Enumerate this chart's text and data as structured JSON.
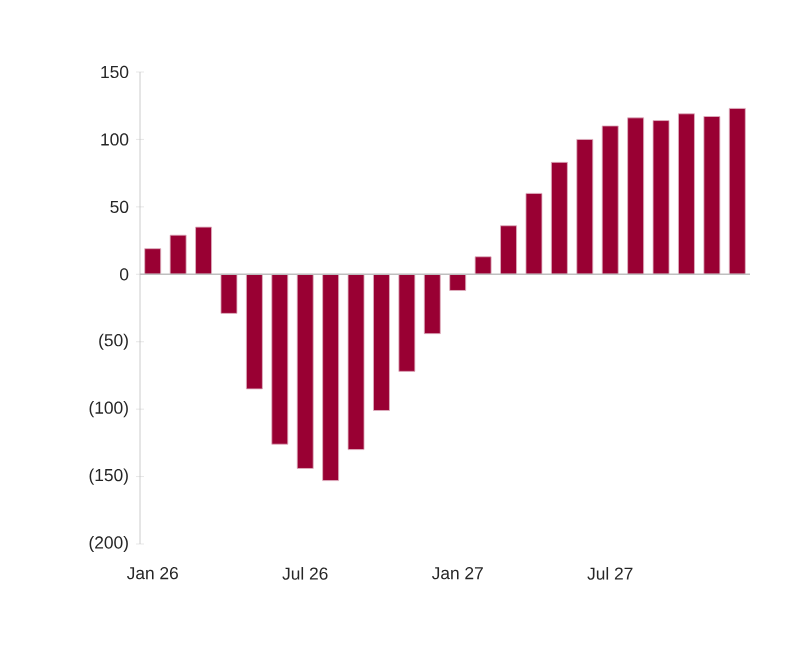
{
  "chart_data": {
    "type": "bar",
    "categories": [
      "Jan 26",
      null,
      null,
      null,
      null,
      null,
      "Jul 26",
      null,
      null,
      null,
      null,
      null,
      "Jan 27",
      null,
      null,
      null,
      null,
      null,
      "Jul 27",
      null,
      null,
      null,
      null,
      null
    ],
    "values": [
      19,
      29,
      35,
      -29,
      -85,
      -126,
      -144,
      -153,
      -130,
      -101,
      -72,
      -44,
      -12,
      13,
      36,
      60,
      83,
      100,
      110,
      116,
      114,
      119,
      117,
      123
    ],
    "color": "#990033",
    "ylim": [
      -200,
      150
    ],
    "yticks": [
      {
        "value": -200,
        "label": "(200)"
      },
      {
        "value": -150,
        "label": "(150)"
      },
      {
        "value": -100,
        "label": "(100)"
      },
      {
        "value": -50,
        "label": "(50)"
      },
      0,
      50,
      100,
      150
    ],
    "legend": false
  }
}
